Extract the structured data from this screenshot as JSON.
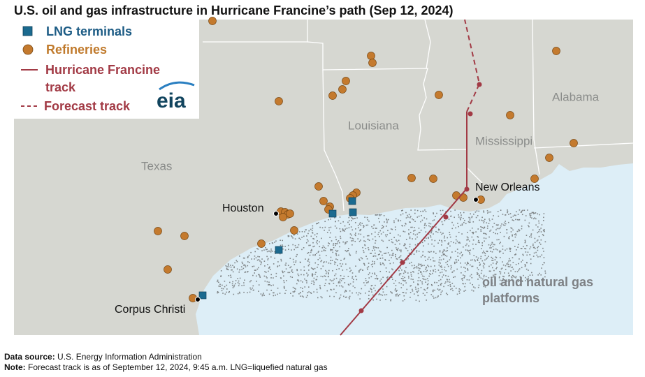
{
  "header": {
    "title": "U.S. oil and gas infrastructure in Hurricane Francine’s path (Sep 12, 2024)"
  },
  "legend": {
    "items": [
      "LNG terminals",
      "Refineries",
      "Hurricane Francine track",
      "Forecast track"
    ],
    "logo": "eia"
  },
  "map_labels": {
    "states": [
      "Texas",
      "Louisiana",
      "Mississippi",
      "Alabama"
    ],
    "cities": [
      "Houston",
      "New Orleans",
      "Corpus Christi"
    ],
    "platforms": "oil and natural gas platforms"
  },
  "footer": {
    "source_label": "Data source:",
    "source": "U.S. Energy Information Administration",
    "note_label": "Note:",
    "note": "Forecast track is as of September 12, 2024, 9:45 a.m. LNG=liquefied natural gas"
  }
}
